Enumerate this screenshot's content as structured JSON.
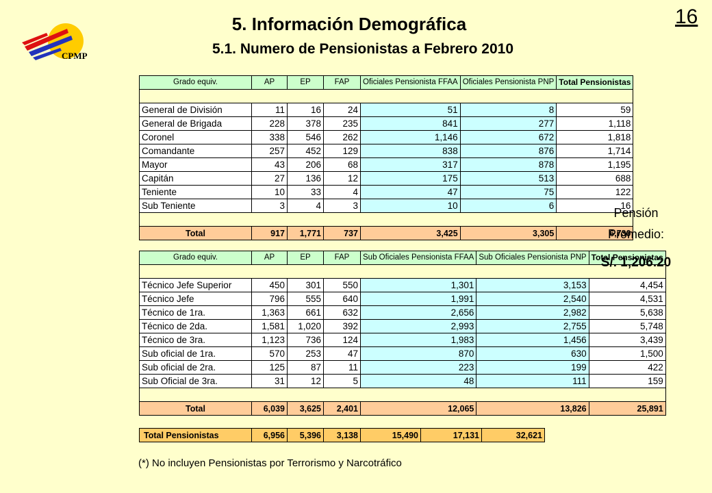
{
  "page_number": "16",
  "title": "5. Información Demográfica",
  "subtitle": "5.1. Numero de Pensionistas a Febrero 2010",
  "logo_text": "CPMP",
  "table1": {
    "headers": [
      "Grado equiv.",
      "AP",
      "EP",
      "FAP",
      "Oficiales Pensionista FFAA",
      "Oficiales Pensionista PNP",
      "Total Pensionistas"
    ],
    "rows": [
      [
        "General de División",
        "11",
        "16",
        "24",
        "51",
        "8",
        "59"
      ],
      [
        "General de Brigada",
        "228",
        "378",
        "235",
        "841",
        "277",
        "1,118"
      ],
      [
        "Coronel",
        "338",
        "546",
        "262",
        "1,146",
        "672",
        "1,818"
      ],
      [
        "Comandante",
        "257",
        "452",
        "129",
        "838",
        "876",
        "1,714"
      ],
      [
        "Mayor",
        "43",
        "206",
        "68",
        "317",
        "878",
        "1,195"
      ],
      [
        "Capitán",
        "27",
        "136",
        "12",
        "175",
        "513",
        "688"
      ],
      [
        "Teniente",
        "10",
        "33",
        "4",
        "47",
        "75",
        "122"
      ],
      [
        "Sub Teniente",
        "3",
        "4",
        "3",
        "10",
        "6",
        "16"
      ]
    ],
    "total": [
      "Total",
      "917",
      "1,771",
      "737",
      "3,425",
      "3,305",
      "6,730"
    ]
  },
  "table2": {
    "headers": [
      "Grado equiv.",
      "AP",
      "EP",
      "FAP",
      "Sub Oficiales Pensionista FFAA",
      "Sub Oficiales Pensionista PNP",
      "Total Pensionistas"
    ],
    "rows": [
      [
        "Técnico Jefe Superior",
        "450",
        "301",
        "550",
        "1,301",
        "3,153",
        "4,454"
      ],
      [
        "Técnico Jefe",
        "796",
        "555",
        "640",
        "1,991",
        "2,540",
        "4,531"
      ],
      [
        "Técnico de 1ra.",
        "1,363",
        "661",
        "632",
        "2,656",
        "2,982",
        "5,638"
      ],
      [
        "Técnico de 2da.",
        "1,581",
        "1,020",
        "392",
        "2,993",
        "2,755",
        "5,748"
      ],
      [
        "Técnico de 3ra.",
        "1,123",
        "736",
        "124",
        "1,983",
        "1,456",
        "3,439"
      ],
      [
        "Sub oficial de 1ra.",
        "570",
        "253",
        "47",
        "870",
        "630",
        "1,500"
      ],
      [
        "Sub oficial de 2ra.",
        "125",
        "87",
        "11",
        "223",
        "199",
        "422"
      ],
      [
        "Sub Oficial de 3ra.",
        "31",
        "12",
        "5",
        "48",
        "111",
        "159"
      ]
    ],
    "total": [
      "Total",
      "6,039",
      "3,625",
      "2,401",
      "12,065",
      "13,826",
      "25,891"
    ]
  },
  "grand_total": [
    "Total Pensionistas",
    "6,956",
    "5,396",
    "3,138",
    "15,490",
    "17,131",
    "32,621"
  ],
  "pension": {
    "line1": "Pensión",
    "line2": "Promedio:",
    "value": "S/. 1,206.20"
  },
  "footnote": "(*) No incluyen Pensionistas por Terrorismo y Narcotráfico",
  "colors": {
    "background": "#ffffcc",
    "header_green": "#ccffcc",
    "highlight_cyan": "#ccffff",
    "total_orange": "#ffcc99",
    "grand_total_orange": "#ffcc66"
  }
}
